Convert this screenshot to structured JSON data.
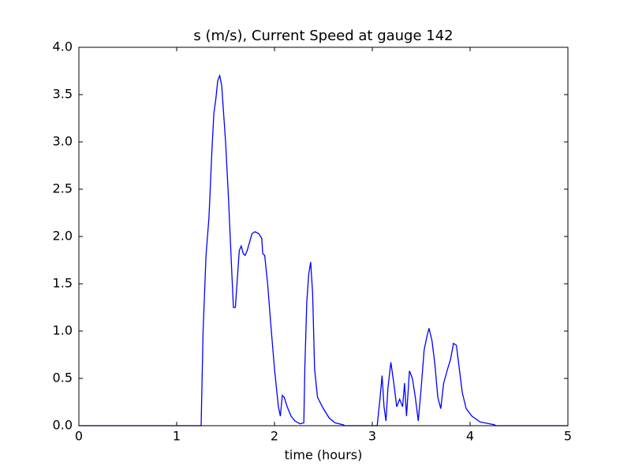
{
  "chart_data": {
    "type": "line",
    "title": "s (m/s), Current Speed at gauge 142",
    "x_label": "time (hours)",
    "x": [
      0,
      1.25,
      1.27,
      1.3,
      1.33,
      1.36,
      1.38,
      1.4,
      1.42,
      1.44,
      1.46,
      1.5,
      1.53,
      1.56,
      1.58,
      1.6,
      1.62,
      1.64,
      1.66,
      1.68,
      1.7,
      1.72,
      1.74,
      1.77,
      1.8,
      1.84,
      1.87,
      1.88,
      1.9,
      1.93,
      1.96,
      2.0,
      2.04,
      2.06,
      2.08,
      2.1,
      2.13,
      2.17,
      2.21,
      2.26,
      2.3,
      2.31,
      2.33,
      2.35,
      2.37,
      2.39,
      2.41,
      2.44,
      2.5,
      2.56,
      2.62,
      2.7,
      2.72,
      3.05,
      3.08,
      3.1,
      3.12,
      3.14,
      3.16,
      3.19,
      3.22,
      3.25,
      3.28,
      3.31,
      3.33,
      3.35,
      3.38,
      3.41,
      3.44,
      3.47,
      3.5,
      3.53,
      3.56,
      3.58,
      3.61,
      3.64,
      3.67,
      3.7,
      3.73,
      3.77,
      3.8,
      3.83,
      3.86,
      3.89,
      3.92,
      3.96,
      4.02,
      4.1,
      4.2,
      4.25,
      4.26,
      5
    ],
    "series": [
      {
        "color": "#0000ff",
        "values": [
          0,
          0,
          1.0,
          1.8,
          2.2,
          2.9,
          3.3,
          3.45,
          3.65,
          3.7,
          3.6,
          3.0,
          2.4,
          1.7,
          1.25,
          1.25,
          1.55,
          1.85,
          1.9,
          1.82,
          1.8,
          1.85,
          1.92,
          2.03,
          2.05,
          2.03,
          1.98,
          1.82,
          1.8,
          1.5,
          1.1,
          0.6,
          0.2,
          0.1,
          0.32,
          0.3,
          0.2,
          0.1,
          0.05,
          0.02,
          0.03,
          0.6,
          1.3,
          1.6,
          1.73,
          1.4,
          0.6,
          0.3,
          0.18,
          0.08,
          0.03,
          0.01,
          0,
          0,
          0.3,
          0.53,
          0.2,
          0.05,
          0.4,
          0.67,
          0.45,
          0.2,
          0.28,
          0.2,
          0.45,
          0.1,
          0.58,
          0.5,
          0.3,
          0.05,
          0.4,
          0.8,
          0.95,
          1.03,
          0.9,
          0.65,
          0.3,
          0.18,
          0.45,
          0.6,
          0.7,
          0.87,
          0.85,
          0.6,
          0.35,
          0.18,
          0.1,
          0.04,
          0.02,
          0.01,
          0,
          0
        ]
      }
    ],
    "xlim": [
      0,
      5
    ],
    "xticks": [
      0,
      1,
      2,
      3,
      4,
      5
    ],
    "ylim": [
      0,
      4
    ],
    "yticks": [
      {
        "value": 0,
        "label": "0.0"
      },
      0.5,
      {
        "value": 1,
        "label": "1.0"
      },
      1.5,
      {
        "value": 2,
        "label": "2.0"
      },
      2.5,
      {
        "value": 3,
        "label": "3.0"
      },
      3.5,
      {
        "value": 4,
        "label": "4.0"
      }
    ]
  }
}
